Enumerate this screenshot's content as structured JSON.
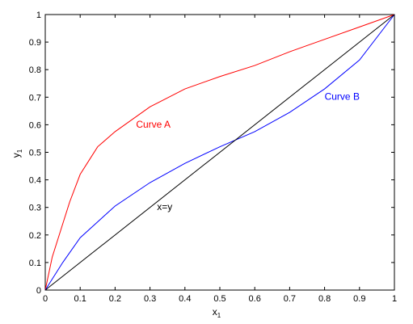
{
  "chart_data": {
    "type": "line",
    "xlabel": "x",
    "xlabel_subscript": "1",
    "ylabel": "y",
    "ylabel_subscript": "1",
    "xlim": [
      0,
      1
    ],
    "ylim": [
      0,
      1
    ],
    "xticks": [
      "0",
      "0.1",
      "0.2",
      "0.3",
      "0.4",
      "0.5",
      "0.6",
      "0.7",
      "0.8",
      "0.9",
      "1"
    ],
    "yticks": [
      "0",
      "0.1",
      "0.2",
      "0.3",
      "0.4",
      "0.5",
      "0.6",
      "0.7",
      "0.8",
      "0.9",
      "1"
    ],
    "grid": false,
    "series": [
      {
        "name": "Curve A",
        "color": "#ff0000",
        "x": [
          0,
          0.02,
          0.05,
          0.07,
          0.1,
          0.13,
          0.15,
          0.2,
          0.3,
          0.4,
          0.5,
          0.6,
          0.7,
          0.8,
          0.9,
          1.0
        ],
        "y": [
          0,
          0.12,
          0.24,
          0.32,
          0.42,
          0.48,
          0.52,
          0.575,
          0.665,
          0.73,
          0.775,
          0.815,
          0.865,
          0.91,
          0.955,
          1.0
        ]
      },
      {
        "name": "Curve B",
        "color": "#0000ff",
        "x": [
          0,
          0.05,
          0.1,
          0.2,
          0.3,
          0.4,
          0.5,
          0.6,
          0.7,
          0.8,
          0.9,
          1.0
        ],
        "y": [
          0,
          0.1,
          0.19,
          0.305,
          0.39,
          0.46,
          0.52,
          0.575,
          0.645,
          0.73,
          0.835,
          1.0
        ]
      },
      {
        "name": "x=y",
        "color": "#000000",
        "x": [
          0,
          1
        ],
        "y": [
          0,
          1
        ]
      }
    ],
    "annotations": [
      {
        "text": "Curve A",
        "x": 0.26,
        "y": 0.59,
        "color": "#ff0000"
      },
      {
        "text": "Curve B",
        "x": 0.8,
        "y": 0.69,
        "color": "#0000ff"
      },
      {
        "text": "x=y",
        "x": 0.32,
        "y": 0.29,
        "color": "#000000"
      }
    ]
  }
}
